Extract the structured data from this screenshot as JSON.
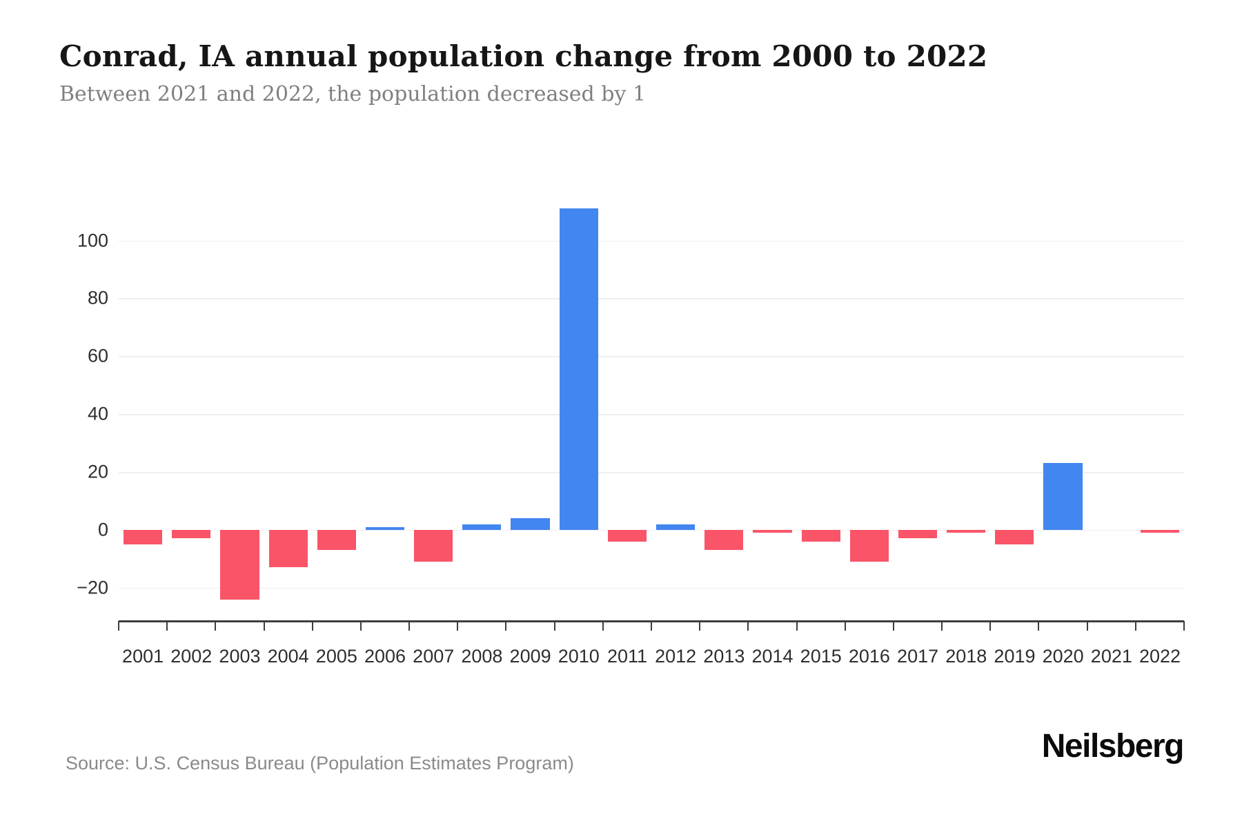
{
  "header": {
    "title": "Conrad, IA annual population change from 2000 to 2022",
    "subtitle": "Between 2021 and 2022, the population decreased by 1"
  },
  "footer": {
    "source": "Source: U.S. Census Bureau (Population Estimates Program)",
    "brand": "Neilsberg"
  },
  "chart_data": {
    "type": "bar",
    "title": "Conrad, IA annual population change from 2000 to 2022",
    "subtitle": "Between 2021 and 2022, the population decreased by 1",
    "series_name": "Annual population change",
    "categories": [
      "2001",
      "2002",
      "2003",
      "2004",
      "2005",
      "2006",
      "2007",
      "2008",
      "2009",
      "2010",
      "2011",
      "2012",
      "2013",
      "2014",
      "2015",
      "2016",
      "2017",
      "2018",
      "2019",
      "2020",
      "2021",
      "2022"
    ],
    "values": [
      -5,
      -3,
      -24,
      -13,
      -7,
      1,
      -11,
      2,
      4,
      111,
      -4,
      2,
      -7,
      -1,
      -4,
      -11,
      -3,
      -1,
      -5,
      23,
      0,
      -1
    ],
    "xlabel": "",
    "ylabel": "",
    "yticks": [
      -20,
      0,
      20,
      40,
      60,
      80,
      100
    ],
    "ylim": [
      -31.5,
      123.5
    ],
    "grid": "horizontal",
    "legend": "none",
    "positive_color": "#4286F0",
    "negative_color": "#F95468",
    "grid_color": "#efefef",
    "axis_color": "#3d3d3d"
  }
}
